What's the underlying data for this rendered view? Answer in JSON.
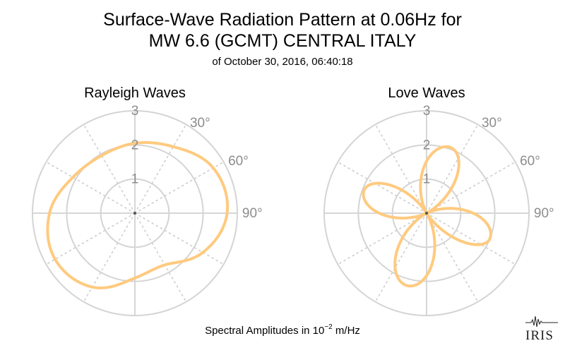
{
  "header": {
    "title_line1": "Surface-Wave Radiation Pattern at 0.06Hz for",
    "title_line2": "MW 6.6 (GCMT) CENTRAL ITALY",
    "subtitle": "of October 30, 2016, 06:40:18"
  },
  "footer": {
    "label_prefix": "Spectral Amplitudes in ",
    "label_base": "10",
    "label_exp": "−2",
    "label_unit": " m/Hz"
  },
  "logo": {
    "text": "IRIS"
  },
  "colors": {
    "curve": "#ffca7f",
    "grid": "#d4d4d4",
    "tick": "#8c8c8c"
  },
  "chart_data": [
    {
      "type": "polar-line",
      "title": "Rayleigh Waves",
      "angle_ticks": [
        "30°",
        "60°",
        "90°"
      ],
      "angle_tick_values": [
        30,
        60,
        90
      ],
      "radial_ticks": [
        "1",
        "2",
        "3"
      ],
      "radial_tick_values": [
        1,
        2,
        3
      ],
      "rlim": [
        0,
        3
      ],
      "angle_direction": "clockwise-from-north",
      "angle_step_deg": 30,
      "series": [
        {
          "azimuth_deg": [
            0,
            30,
            60,
            90,
            120,
            150,
            180,
            210,
            240,
            270,
            300,
            330
          ],
          "amplitude": [
            2.05,
            2.25,
            2.65,
            2.7,
            2.3,
            1.75,
            1.9,
            2.5,
            2.7,
            2.5,
            2.1,
            1.95
          ]
        }
      ]
    },
    {
      "type": "polar-line",
      "title": "Love Waves",
      "angle_ticks": [
        "30°",
        "60°",
        "90°"
      ],
      "angle_tick_values": [
        30,
        60,
        90
      ],
      "radial_ticks": [
        "1",
        "2",
        "3"
      ],
      "radial_tick_values": [
        1,
        2,
        3
      ],
      "rlim": [
        0,
        3
      ],
      "angle_direction": "clockwise-from-north",
      "angle_step_deg": 30,
      "series": [
        {
          "lobes": [
            {
              "peak_azimuth_deg": 20,
              "peak_amplitude": 2.05
            },
            {
              "peak_azimuth_deg": 112,
              "peak_amplitude": 2.0
            },
            {
              "peak_azimuth_deg": 195,
              "peak_amplitude": 2.2
            },
            {
              "peak_azimuth_deg": 290,
              "peak_amplitude": 1.95
            }
          ],
          "null_azimuth_deg": [
            63,
            148,
            243,
            330
          ]
        }
      ]
    }
  ]
}
